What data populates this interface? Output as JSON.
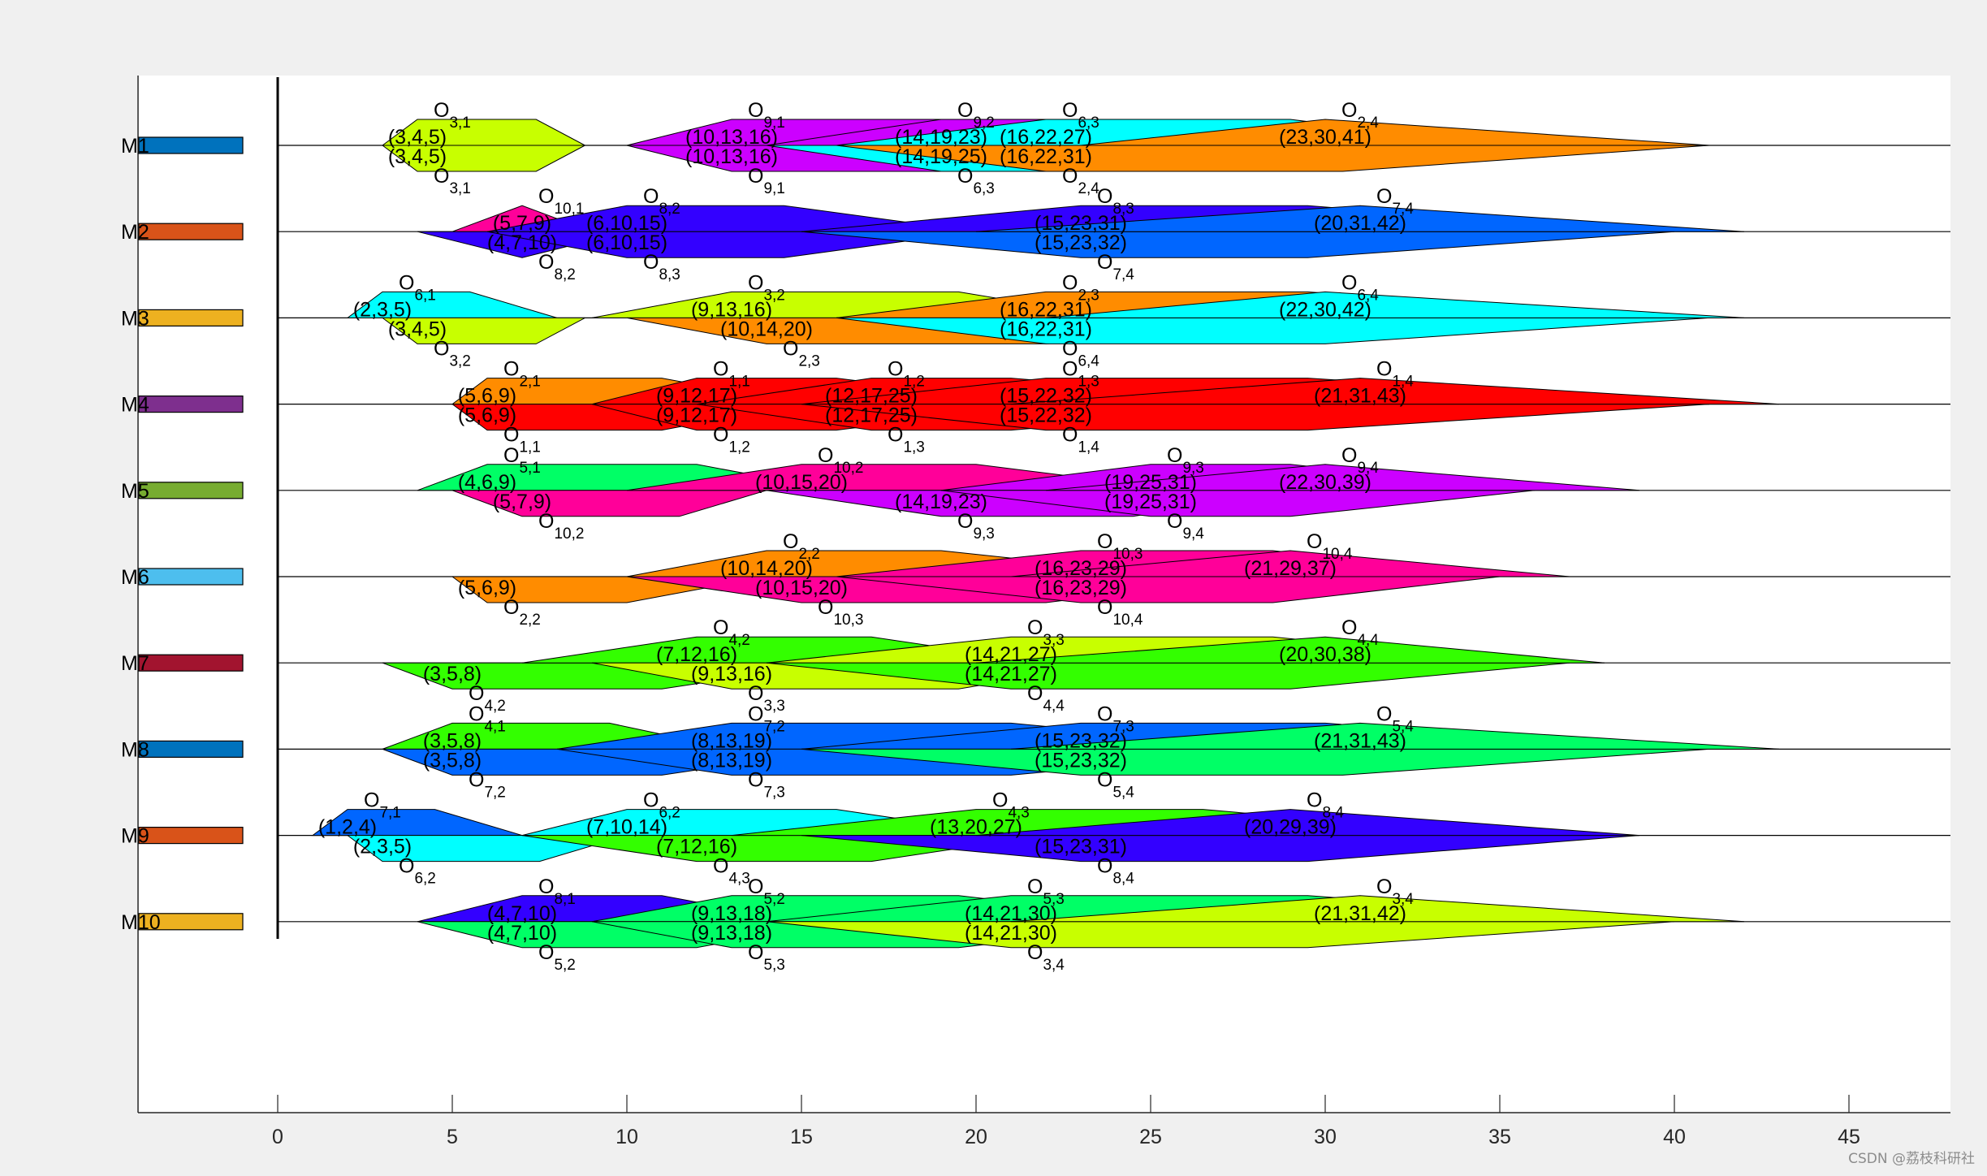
{
  "chart_data": {
    "type": "fuzzy-gantt",
    "xlim": [
      -4,
      48
    ],
    "xticks": [
      0,
      5,
      10,
      15,
      20,
      25,
      30,
      35,
      40,
      45
    ],
    "grid": false,
    "machines": [
      {
        "label": "M1",
        "color": "#0072BD"
      },
      {
        "label": "M2",
        "color": "#D95319"
      },
      {
        "label": "M3",
        "color": "#EDB120"
      },
      {
        "label": "M4",
        "color": "#7E2F8E"
      },
      {
        "label": "M5",
        "color": "#77AC30"
      },
      {
        "label": "M6",
        "color": "#4DBEEE"
      },
      {
        "label": "M7",
        "color": "#A2142F"
      },
      {
        "label": "M8",
        "color": "#0072BD"
      },
      {
        "label": "M9",
        "color": "#D95319"
      },
      {
        "label": "M10",
        "color": "#EDB120"
      }
    ],
    "jobColors": {
      "1": "#ff0000",
      "2": "#ff8c00",
      "3": "#c8ff00",
      "4": "#33ff00",
      "5": "#00ff66",
      "6": "#00ffff",
      "7": "#0066ff",
      "8": "#3300ff",
      "9": "#cc00ff",
      "10": "#ff0099"
    },
    "operations": [
      {
        "m": 1,
        "job": 3,
        "op": 1,
        "side": "up",
        "start": [
          3,
          4,
          5
        ],
        "label": "(3,4,5)",
        "lt": [
          3,
          3.8
        ]
      },
      {
        "m": 1,
        "job": 3,
        "op": 1,
        "side": "down",
        "start": [
          3,
          4,
          5
        ],
        "label": "(3,4,5)",
        "lt": [
          3,
          3.8
        ]
      },
      {
        "m": 1,
        "job": 9,
        "op": 1,
        "side": "up",
        "start": [
          10,
          13,
          16
        ],
        "label": "(10,13,16)",
        "lt": [
          9,
          14
        ]
      },
      {
        "m": 1,
        "job": 9,
        "op": 1,
        "side": "down",
        "start": [
          10,
          13,
          16
        ],
        "label": "(10,13,16)",
        "lt": [
          9,
          14
        ]
      },
      {
        "m": 1,
        "job": 9,
        "op": 2,
        "side": "up",
        "start": [
          14,
          19,
          23
        ],
        "label": "(14,19,23)",
        "lt": [
          3,
          5
        ]
      },
      {
        "m": 1,
        "job": 6,
        "op": 3,
        "side": "down",
        "start": [
          14,
          19,
          25
        ],
        "label": "(14,19,25)",
        "lt": [
          3,
          6
        ]
      },
      {
        "m": 1,
        "job": 6,
        "op": 3,
        "side": "up",
        "start": [
          16,
          22,
          27
        ],
        "label": "(16,22,27)",
        "lt": [
          6,
          8
        ]
      },
      {
        "m": 1,
        "job": 2,
        "op": 4,
        "side": "down",
        "start": [
          16,
          22,
          31
        ],
        "label": "(16,22,31)",
        "lt": [
          7,
          10
        ]
      },
      {
        "m": 1,
        "job": 2,
        "op": 4,
        "side": "up",
        "start": [
          23,
          30,
          41
        ],
        "label": "(23,30,41)",
        "lt": [
          0,
          0
        ]
      },
      {
        "m": 2,
        "job": 10,
        "op": 1,
        "side": "up",
        "start": [
          5,
          7,
          9
        ],
        "label": "(5,7,9)",
        "lt": [
          0,
          0
        ]
      },
      {
        "m": 2,
        "job": 8,
        "op": 2,
        "side": "down",
        "start": [
          4,
          7,
          10
        ],
        "label": "(4,7,10)",
        "lt": [
          0,
          0
        ]
      },
      {
        "m": 2,
        "job": 8,
        "op": 2,
        "side": "up",
        "start": [
          6,
          10,
          15
        ],
        "label": "(6,10,15)",
        "lt": [
          4,
          5
        ]
      },
      {
        "m": 2,
        "job": 8,
        "op": 3,
        "side": "down",
        "start": [
          6,
          10,
          15
        ],
        "label": "(6,10,15)",
        "lt": [
          4,
          5
        ]
      },
      {
        "m": 2,
        "job": 8,
        "op": 3,
        "side": "up",
        "start": [
          15,
          23,
          31
        ],
        "label": "(15,23,31)",
        "lt": [
          5,
          8
        ]
      },
      {
        "m": 2,
        "job": 7,
        "op": 4,
        "side": "down",
        "start": [
          15,
          23,
          32
        ],
        "label": "(15,23,32)",
        "lt": [
          5,
          8
        ]
      },
      {
        "m": 2,
        "job": 7,
        "op": 4,
        "side": "up",
        "start": [
          20,
          31,
          42
        ],
        "label": "(20,31,42)",
        "lt": [
          0,
          0
        ]
      },
      {
        "m": 3,
        "job": 6,
        "op": 1,
        "side": "up",
        "start": [
          2,
          3,
          5
        ],
        "label": "(2,3,5)",
        "lt": [
          2,
          3
        ]
      },
      {
        "m": 3,
        "job": 3,
        "op": 2,
        "side": "down",
        "start": [
          3,
          4,
          5
        ],
        "label": "(3,4,5)",
        "lt": [
          3,
          3.8
        ]
      },
      {
        "m": 3,
        "job": 3,
        "op": 2,
        "side": "up",
        "start": [
          9,
          13,
          16
        ],
        "label": "(9,13,16)",
        "lt": [
          5,
          8
        ]
      },
      {
        "m": 3,
        "job": 2,
        "op": 3,
        "side": "down",
        "start": [
          10,
          14,
          20
        ],
        "label": "(10,14,20)",
        "lt": [
          6,
          10
        ]
      },
      {
        "m": 3,
        "job": 2,
        "op": 3,
        "side": "up",
        "start": [
          16,
          22,
          31
        ],
        "label": "(16,22,31)",
        "lt": [
          6,
          9
        ]
      },
      {
        "m": 3,
        "job": 6,
        "op": 4,
        "side": "down",
        "start": [
          16,
          22,
          31
        ],
        "label": "(16,22,31)",
        "lt": [
          6,
          10
        ]
      },
      {
        "m": 3,
        "job": 6,
        "op": 4,
        "side": "up",
        "start": [
          22,
          30,
          42
        ],
        "label": "(22,30,42)",
        "lt": [
          0,
          0
        ]
      },
      {
        "m": 4,
        "job": 2,
        "op": 1,
        "side": "up",
        "start": [
          5,
          6,
          9
        ],
        "label": "(5,6,9)",
        "lt": [
          4,
          6
        ]
      },
      {
        "m": 4,
        "job": 1,
        "op": 1,
        "side": "down",
        "start": [
          5,
          6,
          9
        ],
        "label": "(5,6,9)",
        "lt": [
          4,
          6
        ]
      },
      {
        "m": 4,
        "job": 1,
        "op": 1,
        "side": "up",
        "start": [
          9,
          12,
          17
        ],
        "label": "(9,12,17)",
        "lt": [
          3,
          5
        ]
      },
      {
        "m": 4,
        "job": 1,
        "op": 2,
        "side": "down",
        "start": [
          9,
          12,
          17
        ],
        "label": "(9,12,17)",
        "lt": [
          3,
          5
        ]
      },
      {
        "m": 4,
        "job": 1,
        "op": 2,
        "side": "up",
        "start": [
          12,
          17,
          25
        ],
        "label": "(12,17,25)",
        "lt": [
          3,
          5
        ]
      },
      {
        "m": 4,
        "job": 1,
        "op": 3,
        "side": "down",
        "start": [
          12,
          17,
          25
        ],
        "label": "(12,17,25)",
        "lt": [
          3,
          5
        ]
      },
      {
        "m": 4,
        "job": 1,
        "op": 3,
        "side": "up",
        "start": [
          15,
          22,
          32
        ],
        "label": "(15,22,32)",
        "lt": [
          6,
          9
        ]
      },
      {
        "m": 4,
        "job": 1,
        "op": 4,
        "side": "down",
        "start": [
          15,
          22,
          32
        ],
        "label": "(15,22,32)",
        "lt": [
          6,
          9
        ]
      },
      {
        "m": 4,
        "job": 1,
        "op": 4,
        "side": "up",
        "start": [
          21,
          31,
          43
        ],
        "label": "(21,31,43)",
        "lt": [
          0,
          0
        ]
      },
      {
        "m": 5,
        "job": 5,
        "op": 1,
        "side": "up",
        "start": [
          4,
          6,
          9
        ],
        "label": "(4,6,9)",
        "lt": [
          5,
          7
        ]
      },
      {
        "m": 5,
        "job": 10,
        "op": 2,
        "side": "down",
        "start": [
          5,
          7,
          9
        ],
        "label": "(5,7,9)",
        "lt": [
          4,
          5
        ]
      },
      {
        "m": 5,
        "job": 10,
        "op": 2,
        "side": "up",
        "start": [
          10,
          15,
          20
        ],
        "label": "(10,15,20)",
        "lt": [
          4,
          6
        ]
      },
      {
        "m": 5,
        "job": 9,
        "op": 3,
        "side": "down",
        "start": [
          14,
          19,
          23
        ],
        "label": "(14,19,23)",
        "lt": [
          5,
          6
        ]
      },
      {
        "m": 5,
        "job": 9,
        "op": 3,
        "side": "up",
        "start": [
          19,
          25,
          31
        ],
        "label": "(19,25,31)",
        "lt": [
          3,
          5
        ]
      },
      {
        "m": 5,
        "job": 9,
        "op": 4,
        "side": "down",
        "start": [
          19,
          25,
          31
        ],
        "label": "(19,25,31)",
        "lt": [
          3,
          5
        ]
      },
      {
        "m": 5,
        "job": 9,
        "op": 4,
        "side": "up",
        "start": [
          22,
          30,
          39
        ],
        "label": "(22,30,39)",
        "lt": [
          0,
          0
        ]
      },
      {
        "m": 6,
        "job": 2,
        "op": 2,
        "side": "down",
        "start": [
          5,
          6,
          9
        ],
        "label": "(5,6,9)",
        "lt": [
          3,
          5
        ]
      },
      {
        "m": 6,
        "job": 2,
        "op": 2,
        "side": "up",
        "start": [
          10,
          14,
          20
        ],
        "label": "(10,14,20)",
        "lt": [
          4,
          6
        ]
      },
      {
        "m": 6,
        "job": 10,
        "op": 3,
        "side": "down",
        "start": [
          10,
          15,
          20
        ],
        "label": "(10,15,20)",
        "lt": [
          6,
          8
        ]
      },
      {
        "m": 6,
        "job": 10,
        "op": 3,
        "side": "up",
        "start": [
          16,
          23,
          29
        ],
        "label": "(16,23,29)",
        "lt": [
          5,
          6
        ]
      },
      {
        "m": 6,
        "job": 10,
        "op": 4,
        "side": "down",
        "start": [
          16,
          23,
          29
        ],
        "label": "(16,23,29)",
        "lt": [
          5,
          6
        ]
      },
      {
        "m": 6,
        "job": 10,
        "op": 4,
        "side": "up",
        "start": [
          21,
          29,
          37
        ],
        "label": "(21,29,37)",
        "lt": [
          0,
          0
        ]
      },
      {
        "m": 7,
        "job": 4,
        "op": 2,
        "side": "down",
        "start": [
          3,
          5,
          8
        ],
        "label": "(3,5,8)",
        "lt": [
          4,
          8
        ]
      },
      {
        "m": 7,
        "job": 4,
        "op": 2,
        "side": "up",
        "start": [
          7,
          12,
          16
        ],
        "label": "(7,12,16)",
        "lt": [
          4,
          6
        ]
      },
      {
        "m": 7,
        "job": 3,
        "op": 3,
        "side": "down",
        "start": [
          9,
          13,
          16
        ],
        "label": "(9,13,16)",
        "lt": [
          5,
          8
        ]
      },
      {
        "m": 7,
        "job": 3,
        "op": 3,
        "side": "up",
        "start": [
          14,
          21,
          27
        ],
        "label": "(14,21,27)",
        "lt": [
          6,
          9
        ]
      },
      {
        "m": 7,
        "job": 4,
        "op": 4,
        "side": "down",
        "start": [
          14,
          21,
          27
        ],
        "label": "(14,21,27)",
        "lt": [
          6,
          10
        ]
      },
      {
        "m": 7,
        "job": 4,
        "op": 4,
        "side": "up",
        "start": [
          20,
          30,
          38
        ],
        "label": "(20,30,38)",
        "lt": [
          0,
          0
        ]
      },
      {
        "m": 8,
        "job": 4,
        "op": 1,
        "side": "up",
        "start": [
          3,
          5,
          8
        ],
        "label": "(3,5,8)",
        "lt": [
          4,
          5
        ]
      },
      {
        "m": 8,
        "job": 7,
        "op": 2,
        "side": "down",
        "start": [
          3,
          5,
          8
        ],
        "label": "(3,5,8)",
        "lt": [
          4,
          8
        ]
      },
      {
        "m": 8,
        "job": 7,
        "op": 2,
        "side": "up",
        "start": [
          8,
          13,
          19
        ],
        "label": "(8,13,19)",
        "lt": [
          6,
          10
        ]
      },
      {
        "m": 8,
        "job": 7,
        "op": 3,
        "side": "down",
        "start": [
          8,
          13,
          19
        ],
        "label": "(8,13,19)",
        "lt": [
          6,
          10
        ]
      },
      {
        "m": 8,
        "job": 7,
        "op": 3,
        "side": "up",
        "start": [
          15,
          23,
          32
        ],
        "label": "(15,23,32)",
        "lt": [
          6,
          8
        ]
      },
      {
        "m": 8,
        "job": 5,
        "op": 4,
        "side": "down",
        "start": [
          15,
          23,
          32
        ],
        "label": "(15,23,32)",
        "lt": [
          6,
          9
        ]
      },
      {
        "m": 8,
        "job": 5,
        "op": 4,
        "side": "up",
        "start": [
          21,
          31,
          43
        ],
        "label": "(21,31,43)",
        "lt": [
          0,
          0
        ]
      },
      {
        "m": 9,
        "job": 7,
        "op": 1,
        "side": "up",
        "start": [
          1,
          2,
          4
        ],
        "label": "(1,2,4)",
        "lt": [
          2,
          3
        ]
      },
      {
        "m": 9,
        "job": 6,
        "op": 2,
        "side": "down",
        "start": [
          2,
          3,
          5
        ],
        "label": "(2,3,5)",
        "lt": [
          4,
          5
        ]
      },
      {
        "m": 9,
        "job": 6,
        "op": 2,
        "side": "up",
        "start": [
          7,
          10,
          14
        ],
        "label": "(7,10,14)",
        "lt": [
          5,
          7
        ]
      },
      {
        "m": 9,
        "job": 4,
        "op": 3,
        "side": "down",
        "start": [
          7,
          12,
          16
        ],
        "label": "(7,12,16)",
        "lt": [
          4,
          6
        ]
      },
      {
        "m": 9,
        "job": 4,
        "op": 3,
        "side": "up",
        "start": [
          13,
          20,
          27
        ],
        "label": "(13,20,27)",
        "lt": [
          5,
          8
        ]
      },
      {
        "m": 9,
        "job": 8,
        "op": 4,
        "side": "down",
        "start": [
          15,
          23,
          31
        ],
        "label": "(15,23,31)",
        "lt": [
          5,
          8
        ]
      },
      {
        "m": 9,
        "job": 8,
        "op": 4,
        "side": "up",
        "start": [
          20,
          29,
          39
        ],
        "label": "(20,29,39)",
        "lt": [
          0,
          0
        ]
      },
      {
        "m": 10,
        "job": 8,
        "op": 1,
        "side": "up",
        "start": [
          4,
          7,
          10
        ],
        "label": "(4,7,10)",
        "lt": [
          3,
          5
        ]
      },
      {
        "m": 10,
        "job": 5,
        "op": 2,
        "side": "down",
        "start": [
          4,
          7,
          10
        ],
        "label": "(4,7,10)",
        "lt": [
          4,
          6
        ]
      },
      {
        "m": 10,
        "job": 5,
        "op": 2,
        "side": "up",
        "start": [
          9,
          13,
          18
        ],
        "label": "(9,13,18)",
        "lt": [
          5,
          8
        ]
      },
      {
        "m": 10,
        "job": 5,
        "op": 3,
        "side": "down",
        "start": [
          9,
          13,
          18
        ],
        "label": "(9,13,18)",
        "lt": [
          5,
          8
        ]
      },
      {
        "m": 10,
        "job": 5,
        "op": 3,
        "side": "up",
        "start": [
          14,
          21,
          30
        ],
        "label": "(14,21,30)",
        "lt": [
          7,
          10
        ]
      },
      {
        "m": 10,
        "job": 3,
        "op": 4,
        "side": "down",
        "start": [
          14,
          21,
          30
        ],
        "label": "(14,21,30)",
        "lt": [
          7,
          10
        ]
      },
      {
        "m": 10,
        "job": 3,
        "op": 4,
        "side": "up",
        "start": [
          21,
          31,
          42
        ],
        "label": "(21,31,42)",
        "lt": [
          0,
          0
        ]
      }
    ]
  },
  "watermark": "CSDN @荔枝科研社"
}
